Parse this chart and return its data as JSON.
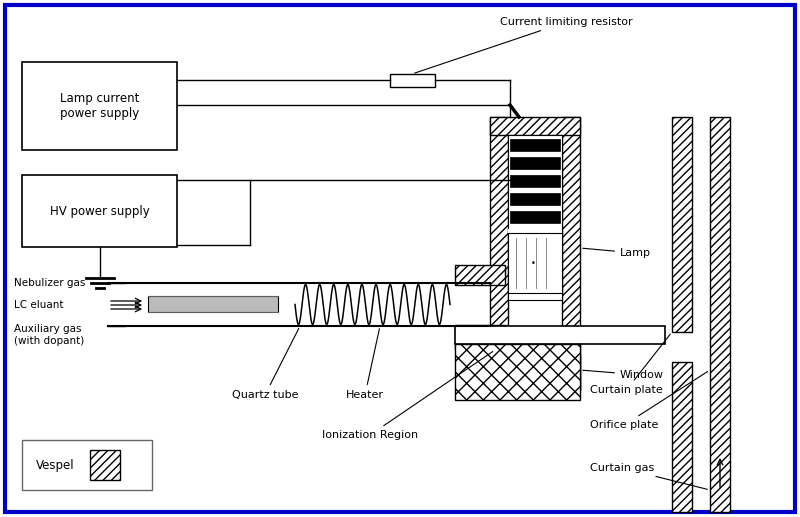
{
  "bg_color": "#ffffff",
  "border_color": "#0000cc",
  "labels": {
    "lamp_current": "Lamp current\npower supply",
    "hv_power": "HV power supply",
    "current_resistor": "Current limiting resistor",
    "nebulizer_gas": "Nebulizer gas",
    "lc_eluant": "LC eluant",
    "auxiliary_gas": "Auxiliary gas\n(with dopant)",
    "quartz_tube": "Quartz tube",
    "heater": "Heater",
    "ionization_region": "Ionization Region",
    "curtain_plate": "Curtain plate",
    "orifice_plate": "Orifice plate",
    "curtain_gas": "Curtain gas",
    "lamp": "Lamp",
    "window": "Window",
    "vespel": "Vespel"
  }
}
